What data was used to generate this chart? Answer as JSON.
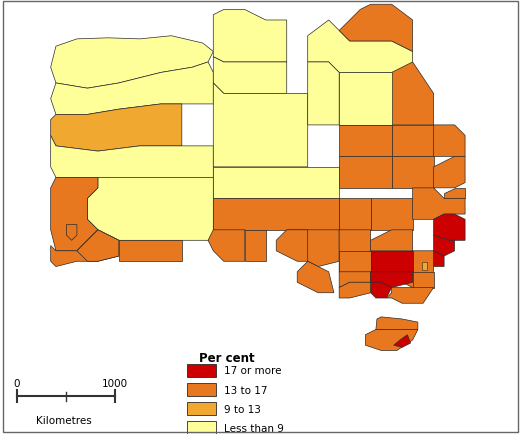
{
  "legend_title": "Per cent",
  "legend_items": [
    {
      "label": "17 or more",
      "color": "#cc0000"
    },
    {
      "label": "13 to 17",
      "color": "#e87820"
    },
    {
      "label": "9 to 13",
      "color": "#f0a830"
    },
    {
      "label": "Less than 9",
      "color": "#ffff99"
    }
  ],
  "background_color": "#ffffff",
  "border_color": "#2a2a2a",
  "border_linewidth": 0.5,
  "figsize": [
    5.21,
    4.35
  ],
  "dpi": 100,
  "map_xlim": [
    113,
    154
  ],
  "map_ylim": [
    -44,
    -10
  ],
  "colors": {
    "red": "#cc0000",
    "orange": "#e87820",
    "yellow_orange": "#f0a830",
    "light_yellow": "#ffff99"
  }
}
